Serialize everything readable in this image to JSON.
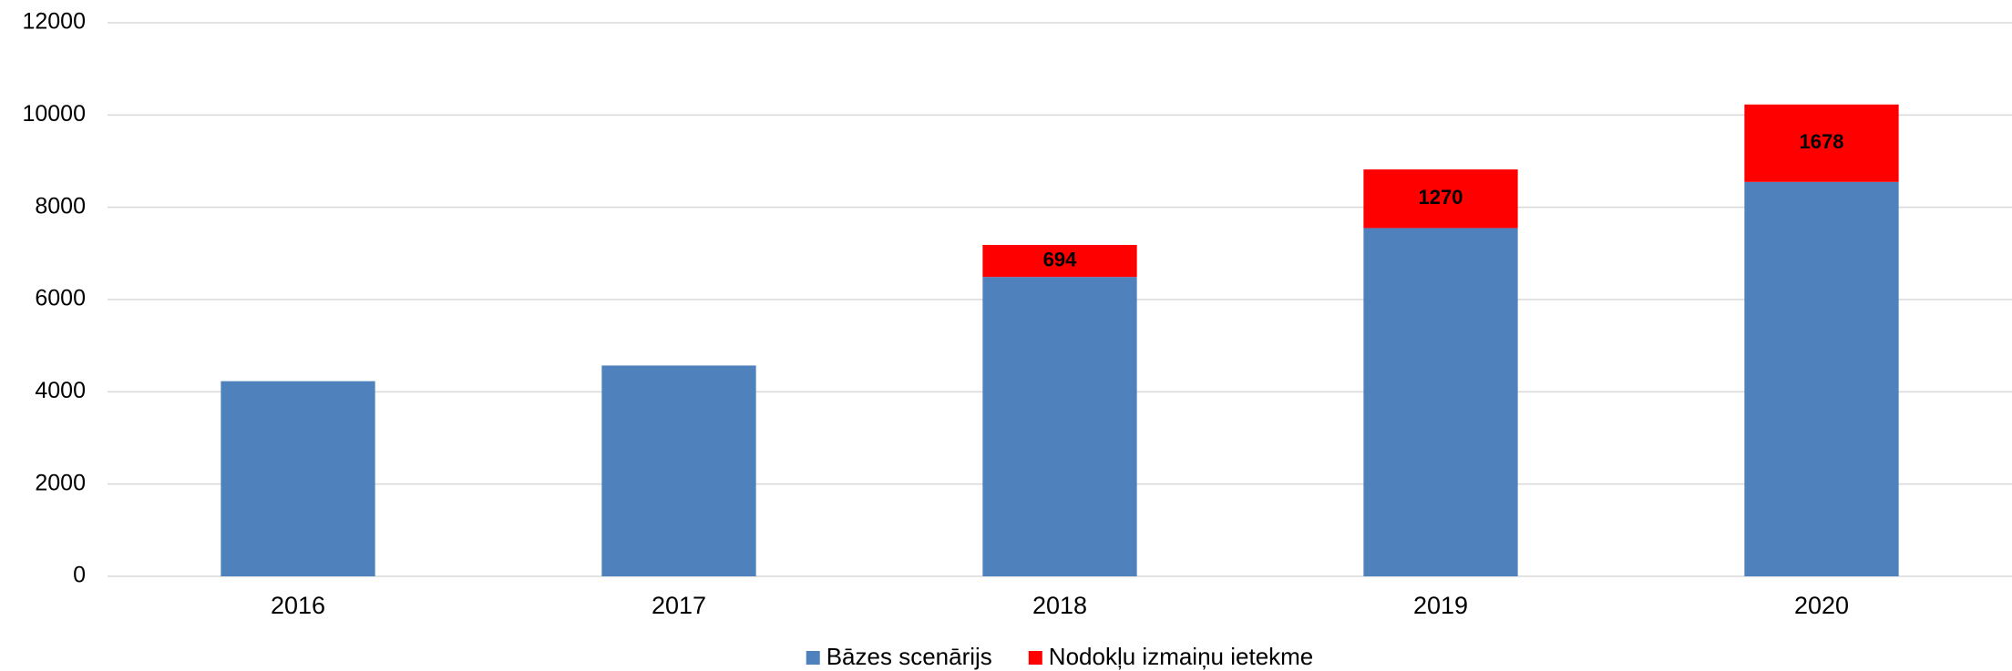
{
  "chart_data": {
    "type": "stacked_bar",
    "categories": [
      "2016",
      "2017",
      "2018",
      "2019",
      "2020"
    ],
    "series": [
      {
        "name": "Bāzes scenārijs",
        "color": "#4f81bd",
        "values": [
          4230,
          4570,
          6490,
          7550,
          8550
        ]
      },
      {
        "name": "Nodokļu izmaiņu ietekme",
        "color": "#ff0000",
        "values": [
          null,
          null,
          694,
          1270,
          1678
        ],
        "value_labels": [
          null,
          null,
          "694",
          "1270",
          "1678"
        ]
      }
    ],
    "ylim": [
      0,
      12000
    ],
    "yticks": [
      0,
      2000,
      4000,
      6000,
      8000,
      10000,
      12000
    ],
    "grid": true,
    "legend": "bottom"
  }
}
